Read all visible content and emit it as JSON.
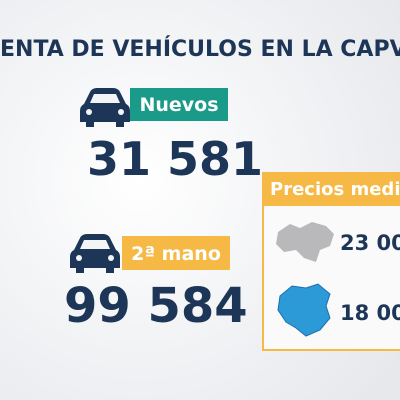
{
  "header": {
    "title": "ENTA DE VEHÍCULOS EN LA CAPV"
  },
  "stats": [
    {
      "label": "Nuevos",
      "value": "31 581"
    },
    {
      "label": "2ª mano",
      "value": "99 584"
    }
  ],
  "prices": {
    "title": "Precios medi",
    "items": [
      {
        "value": "23 00"
      },
      {
        "value": "18 00"
      }
    ]
  }
}
